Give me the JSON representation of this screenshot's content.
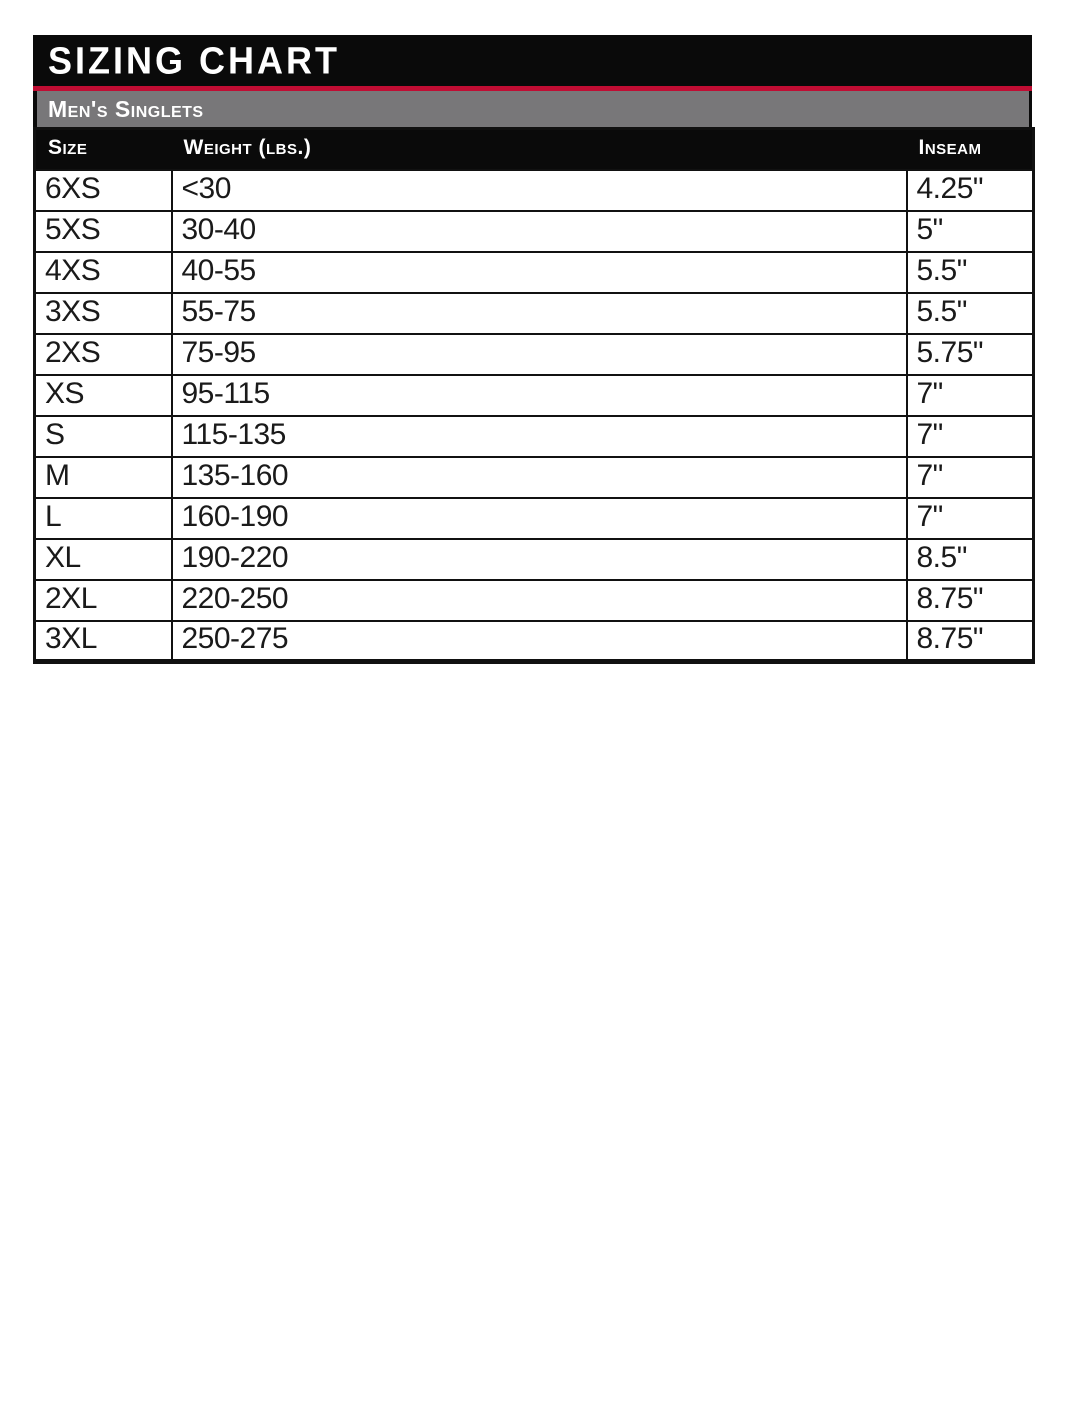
{
  "title": "Sizing Chart",
  "section_header": "Men's Singlets",
  "table": {
    "columns": [
      {
        "key": "size",
        "label": "Size"
      },
      {
        "key": "weight",
        "label": "Weight (lbs.)"
      },
      {
        "key": "inseam",
        "label": "Inseam"
      }
    ],
    "rows": [
      {
        "size": "6XS",
        "weight": "<30",
        "inseam": "4.25\""
      },
      {
        "size": "5XS",
        "weight": "30-40",
        "inseam": "5\""
      },
      {
        "size": "4XS",
        "weight": "40-55",
        "inseam": "5.5\""
      },
      {
        "size": "3XS",
        "weight": "55-75",
        "inseam": "5.5\""
      },
      {
        "size": "2XS",
        "weight": "75-95",
        "inseam": "5.75\""
      },
      {
        "size": "XS",
        "weight": "95-115",
        "inseam": "7\""
      },
      {
        "size": "S",
        "weight": "115-135",
        "inseam": "7\""
      },
      {
        "size": "M",
        "weight": "135-160",
        "inseam": "7\""
      },
      {
        "size": "L",
        "weight": "160-190",
        "inseam": "7\""
      },
      {
        "size": "XL",
        "weight": "190-220",
        "inseam": "8.5\""
      },
      {
        "size": "2XL",
        "weight": "220-250",
        "inseam": "8.75\""
      },
      {
        "size": "3XL",
        "weight": "250-275",
        "inseam": "8.75\""
      }
    ]
  },
  "colors": {
    "accent_red": "#c00d33",
    "bar_gray": "#787779",
    "bar_black": "#0a0a0a",
    "grid_black": "#111111",
    "page_background": "#ffffff",
    "header_text": "#ffffff",
    "cell_text": "#1a1a1a"
  }
}
